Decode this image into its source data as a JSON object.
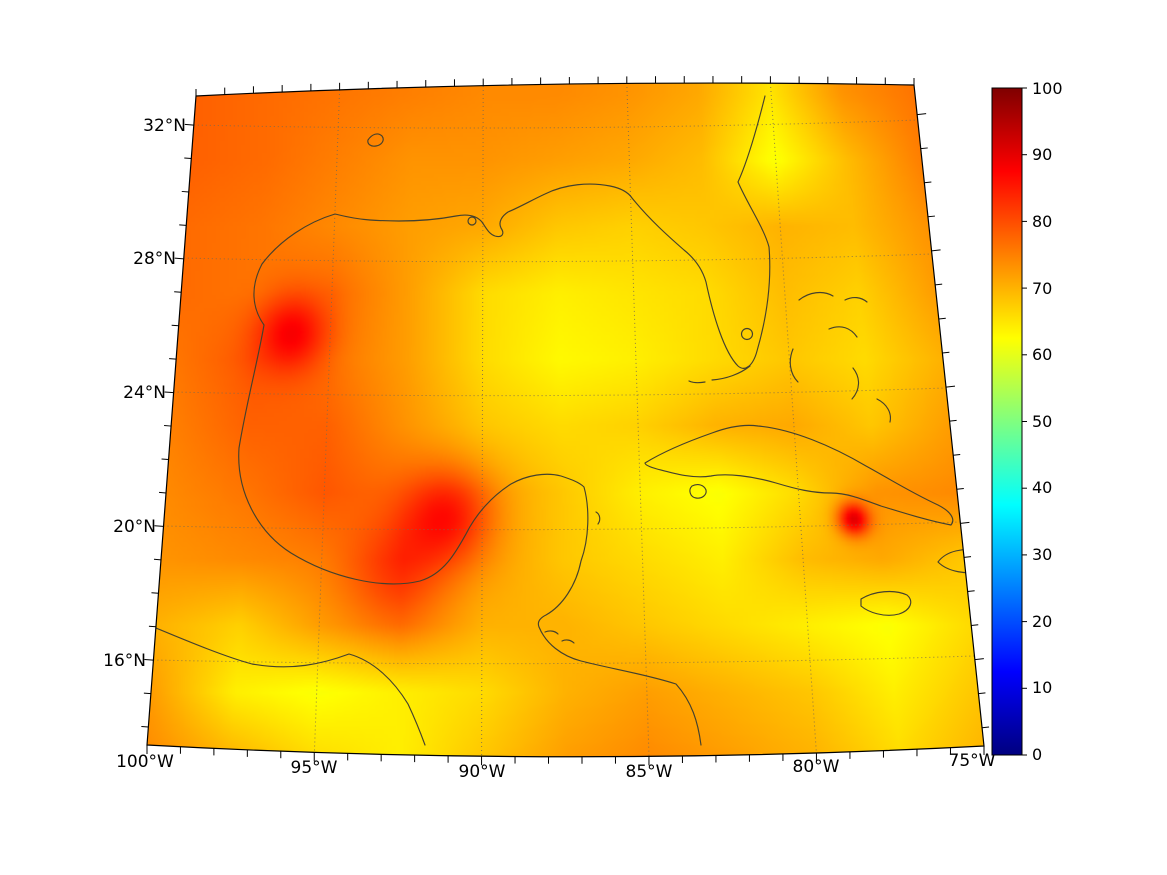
{
  "figure": {
    "type": "map-plot",
    "map": {
      "lat_tick_labels": [
        "32°N",
        "28°N",
        "24°N",
        "20°N",
        "16°N"
      ],
      "lon_tick_labels": [
        "100°W",
        "95°W",
        "90°W",
        "85°W",
        "80°W",
        "75°W"
      ]
    },
    "colorbar": {
      "min": 0,
      "max": 100,
      "tick_labels": [
        "100",
        "90",
        "80",
        "70",
        "60",
        "50",
        "40",
        "30",
        "20",
        "10",
        "0"
      ],
      "jet_stops": [
        {
          "t": 0,
          "rgb": [
            0,
            0,
            127
          ]
        },
        {
          "t": 0.125,
          "rgb": [
            0,
            0,
            255
          ]
        },
        {
          "t": 0.375,
          "rgb": [
            0,
            255,
            255
          ]
        },
        {
          "t": 0.625,
          "rgb": [
            255,
            255,
            0
          ]
        },
        {
          "t": 0.875,
          "rgb": [
            255,
            0,
            0
          ]
        },
        {
          "t": 1,
          "rgb": [
            127,
            0,
            0
          ]
        }
      ]
    },
    "colors": {
      "coastline": "#44412e",
      "frame": "#000000",
      "background": "#ffffff",
      "gridline": "#7a6a50"
    }
  },
  "chart_data": {
    "type": "heatmap",
    "title": "",
    "region": "Gulf of Mexico and northwest Caribbean (conic map projection)",
    "x_axis": {
      "label": "",
      "tick_labels": [
        "100°W",
        "95°W",
        "90°W",
        "85°W",
        "80°W",
        "75°W"
      ]
    },
    "y_axis": {
      "label": "",
      "tick_labels": [
        "32°N",
        "28°N",
        "24°N",
        "20°N",
        "16°N"
      ]
    },
    "colorbar": {
      "range": [
        0,
        100
      ],
      "ticks": [
        0,
        10,
        20,
        30,
        40,
        50,
        60,
        70,
        80,
        90,
        100
      ],
      "colormap": "jet"
    },
    "grid_lines": {
      "lon_step_deg": 5,
      "lat_step_deg": 4,
      "style": "dotted"
    },
    "heat_field": {
      "units": "colorbar scale 0-100 (values estimated from colors)",
      "lons": [
        -100,
        -97.5,
        -95,
        -92.5,
        -90,
        -87.5,
        -85,
        -82.5,
        -80,
        -77.5,
        -75
      ],
      "lats": [
        33,
        31,
        29,
        27,
        25,
        23,
        21,
        19,
        17,
        15,
        13
      ],
      "values": [
        [
          78,
          77,
          76,
          75,
          74,
          74,
          73,
          71,
          65,
          73,
          76
        ],
        [
          78,
          77,
          75,
          73,
          73,
          72,
          71,
          69,
          62,
          69,
          75
        ],
        [
          77,
          76,
          74,
          72,
          71,
          68,
          67,
          68,
          70,
          69,
          73
        ],
        [
          77,
          76,
          77,
          72,
          66,
          64,
          65,
          66,
          69,
          67,
          72
        ],
        [
          76,
          79,
          76,
          72,
          66,
          63,
          64,
          66,
          68,
          66,
          70
        ],
        [
          75,
          78,
          78,
          73,
          68,
          66,
          67,
          70,
          71,
          68,
          72
        ],
        [
          74,
          76,
          79,
          76,
          72,
          68,
          64,
          62,
          66,
          73,
          74
        ],
        [
          73,
          74,
          75,
          78,
          72,
          68,
          66,
          64,
          69,
          71,
          68
        ],
        [
          70,
          67,
          72,
          75,
          70,
          70,
          68,
          66,
          64,
          62,
          66
        ],
        [
          72,
          64,
          62,
          64,
          66,
          70,
          72,
          70,
          68,
          64,
          68
        ],
        [
          74,
          70,
          66,
          64,
          68,
          72,
          74,
          72,
          70,
          66,
          70
        ]
      ],
      "hotspots": [
        {
          "lon": -96.3,
          "lat": 25.8,
          "amp": 11,
          "sigma": 0.8
        },
        {
          "lon": -91.1,
          "lat": 20.3,
          "amp": 12,
          "sigma": 1.0
        },
        {
          "lon": -92.7,
          "lat": 18.5,
          "amp": 5,
          "sigma": 1.1
        },
        {
          "lon": -78.3,
          "lat": 20.2,
          "amp": 20,
          "sigma": 0.35
        }
      ]
    }
  }
}
